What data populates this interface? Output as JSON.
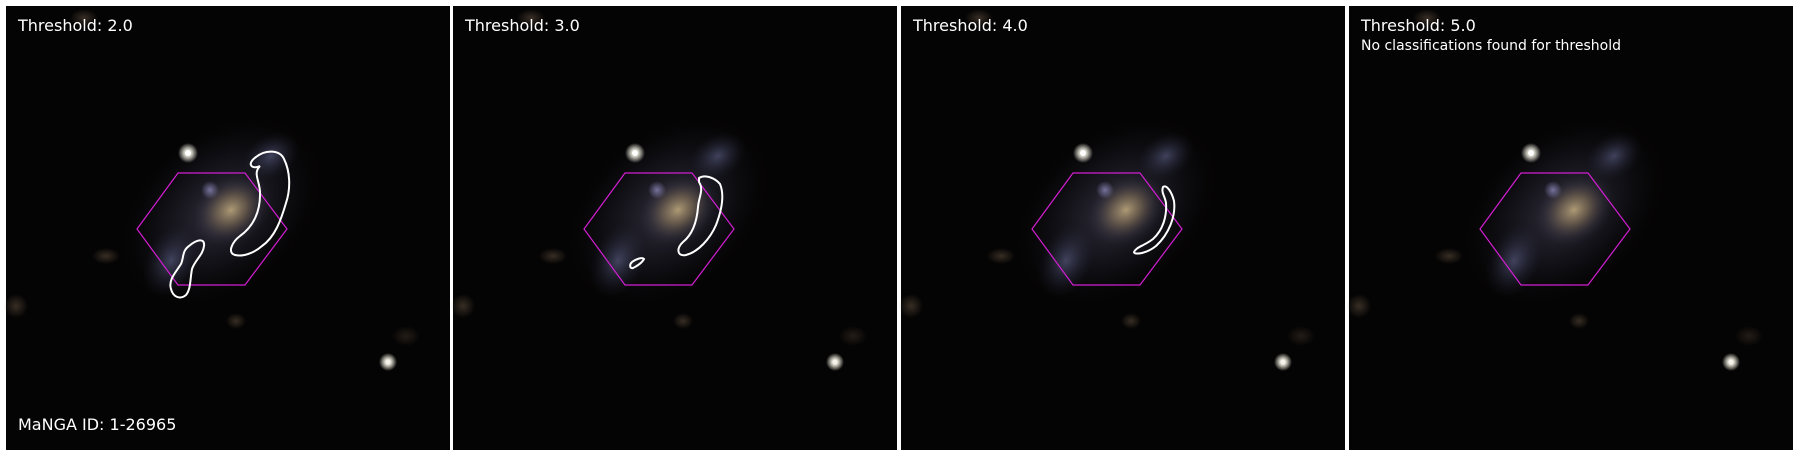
{
  "panels": [
    {
      "threshold_label": "Threshold: 2.0",
      "message": "",
      "footer_label": "MaNGA ID: 1-26965",
      "contours": [
        "threshold-2-contour-a",
        "threshold-2-contour-b"
      ]
    },
    {
      "threshold_label": "Threshold: 3.0",
      "message": "",
      "footer_label": "",
      "contours": [
        "threshold-3-contour-a",
        "threshold-3-contour-b"
      ]
    },
    {
      "threshold_label": "Threshold: 4.0",
      "message": "",
      "footer_label": "",
      "contours": [
        "threshold-4-contour-a"
      ]
    },
    {
      "threshold_label": "Threshold: 5.0",
      "message": "No classifications found for threshold",
      "footer_label": "",
      "contours": []
    }
  ],
  "colors": {
    "background": "#ffffff",
    "sky": "#050404",
    "hexagon": "#d21ed2",
    "contour": "#ffffff",
    "text": "#ffffff"
  }
}
